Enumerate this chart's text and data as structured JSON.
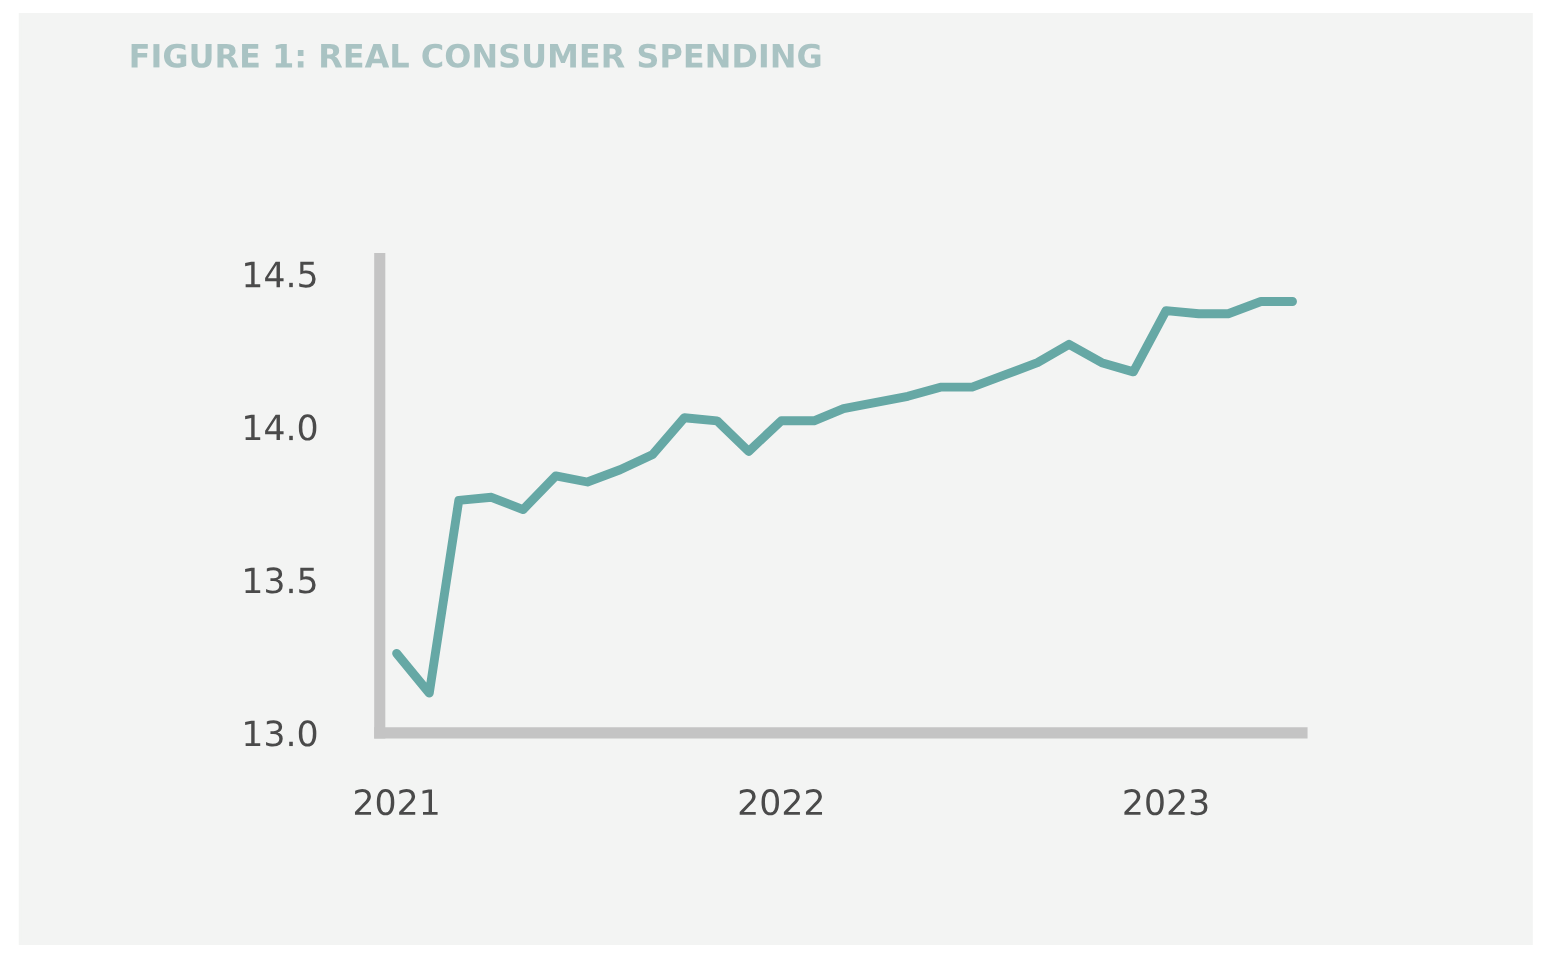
{
  "chart_data": {
    "type": "line",
    "title": "FIGURE 1: REAL CONSUMER SPENDING",
    "x": [
      "2021-01",
      "2021-02",
      "2021-03",
      "2021-04",
      "2021-05",
      "2021-06",
      "2021-07",
      "2021-08",
      "2021-09",
      "2021-10",
      "2021-11",
      "2021-12",
      "2022-01",
      "2022-02",
      "2022-03",
      "2022-04",
      "2022-05",
      "2022-06",
      "2022-07",
      "2022-08",
      "2022-09",
      "2022-10",
      "2022-11",
      "2022-12",
      "2023-01",
      "2023-02",
      "2023-03",
      "2023-04",
      "2023-05"
    ],
    "series": [
      {
        "color": "#66a8a5",
        "values": [
          13.26,
          13.13,
          13.76,
          13.77,
          13.73,
          13.84,
          13.82,
          13.86,
          13.91,
          14.03,
          14.02,
          13.92,
          14.02,
          14.02,
          14.06,
          14.08,
          14.1,
          14.13,
          14.13,
          14.17,
          14.21,
          14.27,
          14.21,
          14.18,
          14.38,
          14.37,
          14.37,
          14.41,
          14.41
        ]
      }
    ],
    "xlim": [
      "2020-12-16",
      "2023-05-10"
    ],
    "xticks": [
      {
        "value": "2021-01-01",
        "label": "2021"
      },
      {
        "value": "2022-01-01",
        "label": "2022"
      },
      {
        "value": "2023-01-01",
        "label": "2023"
      }
    ],
    "ylim": [
      13.0,
      14.55
    ],
    "yticks": [
      {
        "value": 13.0,
        "label": "13.0"
      },
      {
        "value": 13.5,
        "label": "13.5"
      },
      {
        "value": 14.0,
        "label": "14.0"
      },
      {
        "value": 14.5,
        "label": "14.5"
      }
    ],
    "grid": false,
    "marker": "none",
    "line_style": "solid"
  }
}
